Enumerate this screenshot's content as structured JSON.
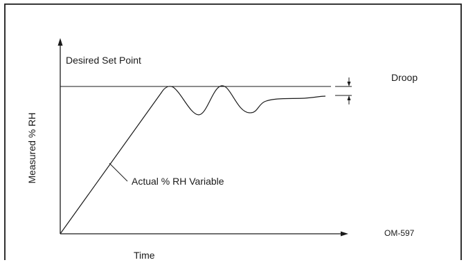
{
  "diagram": {
    "setpoint_label": "Desired Set Point",
    "droop_label": "Droop",
    "variable_label": "Actual % RH Variable",
    "y_axis_label": "Measured % RH",
    "x_axis_label": "Time",
    "figure_code": "OM-597"
  }
}
